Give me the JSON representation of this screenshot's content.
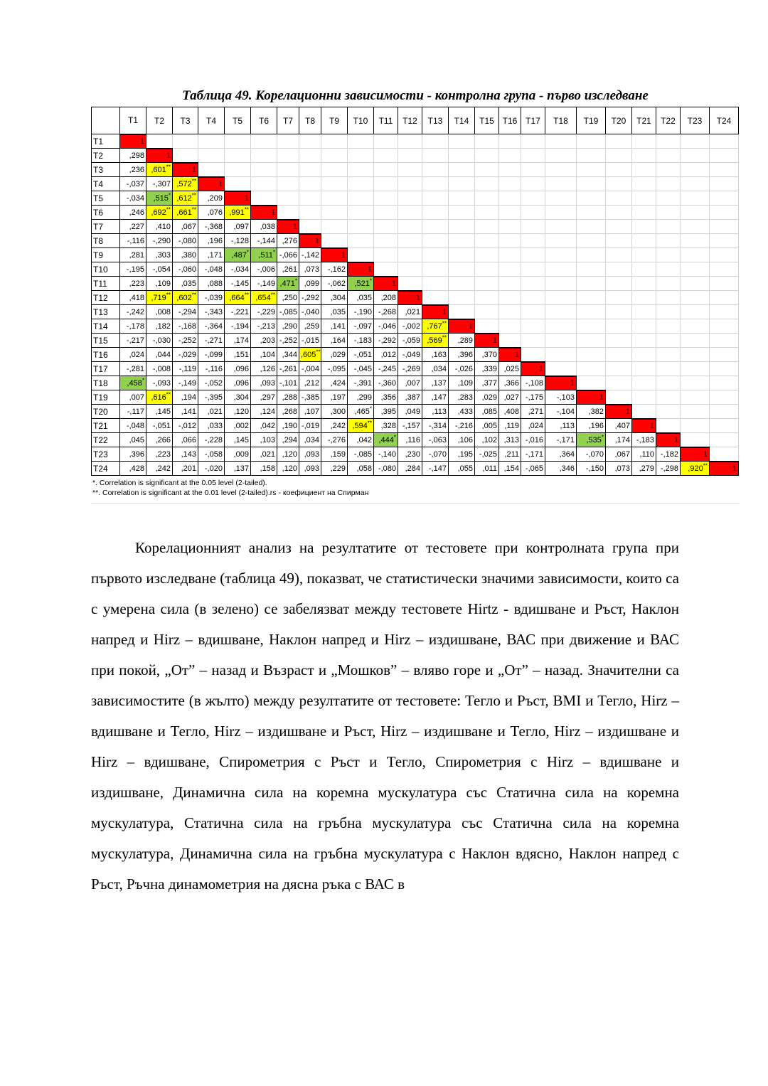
{
  "title": "Таблица 49. Корелационни зависимости - контролна група - първо изследване",
  "colors": {
    "diagonal": "#ff0000",
    "significant_01": "#ffff00",
    "significant_05": "#92d050"
  },
  "table": {
    "col_headers": [
      "T1",
      "T2",
      "T3",
      "T4",
      "T5",
      "T6",
      "T7",
      "T8",
      "T9",
      "T10",
      "T11",
      "T12",
      "T13",
      "T14",
      "T15",
      "T16",
      "T17",
      "T18",
      "T19",
      "T20",
      "T21",
      "T22",
      "T23",
      "T24"
    ],
    "rows": [
      {
        "label": "T1",
        "cells": [
          [
            "1",
            null,
            "r"
          ]
        ]
      },
      {
        "label": "T2",
        "cells": [
          [
            ",298"
          ],
          [
            "1",
            null,
            "r"
          ]
        ]
      },
      {
        "label": "T3",
        "cells": [
          [
            ",236"
          ],
          [
            ",601",
            "**",
            "y"
          ],
          [
            "1",
            null,
            "r"
          ]
        ]
      },
      {
        "label": "T4",
        "cells": [
          [
            "-,037"
          ],
          [
            "-,307"
          ],
          [
            ",572",
            "**",
            "y"
          ],
          [
            "1",
            null,
            "r"
          ]
        ]
      },
      {
        "label": "T5",
        "cells": [
          [
            "-,034"
          ],
          [
            ",515",
            "*",
            "g"
          ],
          [
            ",612",
            "**",
            "y"
          ],
          [
            ",209"
          ],
          [
            "1",
            null,
            "r"
          ]
        ]
      },
      {
        "label": "T6",
        "cells": [
          [
            ",246"
          ],
          [
            ",692",
            "**",
            "y"
          ],
          [
            ",661",
            "**",
            "y"
          ],
          [
            ",076"
          ],
          [
            ",991",
            "**",
            "y"
          ],
          [
            "1",
            null,
            "r"
          ]
        ]
      },
      {
        "label": "T7",
        "cells": [
          [
            ",227"
          ],
          [
            ",410"
          ],
          [
            ",067"
          ],
          [
            "-,368"
          ],
          [
            ",097"
          ],
          [
            ",038"
          ],
          [
            "1",
            null,
            "r"
          ]
        ]
      },
      {
        "label": "T8",
        "cells": [
          [
            "-,116"
          ],
          [
            "-,290"
          ],
          [
            "-,080"
          ],
          [
            ",196"
          ],
          [
            "-,128"
          ],
          [
            "-,144"
          ],
          [
            ",276"
          ],
          [
            "1",
            null,
            "r"
          ]
        ]
      },
      {
        "label": "T9",
        "cells": [
          [
            ",281"
          ],
          [
            ",303"
          ],
          [
            ",380"
          ],
          [
            ",171"
          ],
          [
            ",487",
            "*",
            "g"
          ],
          [
            ",511",
            "*",
            "g"
          ],
          [
            "-,066"
          ],
          [
            "-,142"
          ],
          [
            "1",
            null,
            "r"
          ]
        ]
      },
      {
        "label": "T10",
        "cells": [
          [
            "-,195"
          ],
          [
            "-,054"
          ],
          [
            "-,060"
          ],
          [
            "-,048"
          ],
          [
            "-,034"
          ],
          [
            "-,006"
          ],
          [
            ",261"
          ],
          [
            ",073"
          ],
          [
            "-,162"
          ],
          [
            "1",
            null,
            "r"
          ]
        ]
      },
      {
        "label": "T11",
        "cells": [
          [
            ",223"
          ],
          [
            ",109"
          ],
          [
            ",035"
          ],
          [
            ",088"
          ],
          [
            "-,145"
          ],
          [
            "-,149"
          ],
          [
            ",471",
            "*",
            "g"
          ],
          [
            ",099"
          ],
          [
            "-,062"
          ],
          [
            ",521",
            "*",
            "g"
          ],
          [
            "1",
            null,
            "r"
          ]
        ]
      },
      {
        "label": "T12",
        "cells": [
          [
            ",418"
          ],
          [
            ",719",
            "**",
            "y"
          ],
          [
            ",602",
            "**",
            "y"
          ],
          [
            "-,039"
          ],
          [
            ",664",
            "**",
            "y"
          ],
          [
            ",654",
            "**",
            "y"
          ],
          [
            ",250"
          ],
          [
            "-,292"
          ],
          [
            ",304"
          ],
          [
            ",035"
          ],
          [
            ",208"
          ],
          [
            "1",
            null,
            "r"
          ]
        ]
      },
      {
        "label": "T13",
        "cells": [
          [
            "-,242"
          ],
          [
            ",008"
          ],
          [
            "-,294"
          ],
          [
            "-,343"
          ],
          [
            "-,221"
          ],
          [
            "-,229"
          ],
          [
            "-,085"
          ],
          [
            "-,040"
          ],
          [
            ",035"
          ],
          [
            "-,190"
          ],
          [
            "-,268"
          ],
          [
            ",021"
          ],
          [
            "1",
            null,
            "r"
          ]
        ]
      },
      {
        "label": "T14",
        "cells": [
          [
            "-,178"
          ],
          [
            ",182"
          ],
          [
            "-,168"
          ],
          [
            "-,364"
          ],
          [
            "-,194"
          ],
          [
            "-,213"
          ],
          [
            ",290"
          ],
          [
            ",259"
          ],
          [
            ",141"
          ],
          [
            "-,097"
          ],
          [
            "-,046"
          ],
          [
            "-,002"
          ],
          [
            ",767",
            "**",
            "y"
          ],
          [
            "1",
            null,
            "r"
          ]
        ]
      },
      {
        "label": "T15",
        "cells": [
          [
            "-,217"
          ],
          [
            "-,030"
          ],
          [
            "-,252"
          ],
          [
            "-,271"
          ],
          [
            ",174"
          ],
          [
            ",203"
          ],
          [
            "-,252"
          ],
          [
            "-,015"
          ],
          [
            ",164"
          ],
          [
            "-,183"
          ],
          [
            "-,292"
          ],
          [
            "-,059"
          ],
          [
            ",569",
            "**",
            "y"
          ],
          [
            ",289"
          ],
          [
            "1",
            null,
            "r"
          ]
        ]
      },
      {
        "label": "T16",
        "cells": [
          [
            ",024"
          ],
          [
            ",044"
          ],
          [
            "-,029"
          ],
          [
            "-,099"
          ],
          [
            ",151"
          ],
          [
            ",104"
          ],
          [
            ",344"
          ],
          [
            ",605",
            "**",
            "y"
          ],
          [
            ",029"
          ],
          [
            "-,051"
          ],
          [
            ",012"
          ],
          [
            "-,049"
          ],
          [
            ",163"
          ],
          [
            ",396"
          ],
          [
            ",370"
          ],
          [
            "1",
            null,
            "r"
          ]
        ]
      },
      {
        "label": "T17",
        "cells": [
          [
            "-,281"
          ],
          [
            "-,008"
          ],
          [
            "-,119"
          ],
          [
            "-,116"
          ],
          [
            ",096"
          ],
          [
            ",126"
          ],
          [
            "-,261"
          ],
          [
            "-,004"
          ],
          [
            "-,095"
          ],
          [
            "-,045"
          ],
          [
            "-,245"
          ],
          [
            "-,269"
          ],
          [
            ",034"
          ],
          [
            "-,026"
          ],
          [
            ",339"
          ],
          [
            ",025"
          ],
          [
            "1",
            null,
            "r"
          ]
        ]
      },
      {
        "label": "T18",
        "cells": [
          [
            ",458",
            "*",
            "g"
          ],
          [
            "-,093"
          ],
          [
            "-,149"
          ],
          [
            "-,052"
          ],
          [
            ",096"
          ],
          [
            ",093"
          ],
          [
            "-,101"
          ],
          [
            ",212"
          ],
          [
            ",424"
          ],
          [
            "-,391"
          ],
          [
            "-,360"
          ],
          [
            ",007"
          ],
          [
            ",137"
          ],
          [
            ",109"
          ],
          [
            ",377"
          ],
          [
            ",366"
          ],
          [
            "-,108"
          ],
          [
            "1",
            null,
            "r"
          ]
        ]
      },
      {
        "label": "T19",
        "cells": [
          [
            ",007"
          ],
          [
            ",616",
            "**",
            "y"
          ],
          [
            ",194"
          ],
          [
            "-,395"
          ],
          [
            ",304"
          ],
          [
            ",297"
          ],
          [
            ",288"
          ],
          [
            "-,385"
          ],
          [
            ",197"
          ],
          [
            ",299"
          ],
          [
            ",356"
          ],
          [
            ",387"
          ],
          [
            ",147"
          ],
          [
            ",283"
          ],
          [
            ",029"
          ],
          [
            ",027"
          ],
          [
            "-,175"
          ],
          [
            "-,103"
          ],
          [
            "1",
            null,
            "r"
          ]
        ]
      },
      {
        "label": "T20",
        "cells": [
          [
            "-,117"
          ],
          [
            ",145"
          ],
          [
            ",141"
          ],
          [
            ",021"
          ],
          [
            ",120"
          ],
          [
            ",124"
          ],
          [
            ",268"
          ],
          [
            ",107"
          ],
          [
            ",300"
          ],
          [
            ",465",
            "*"
          ],
          [
            ",395"
          ],
          [
            ",049"
          ],
          [
            ",113"
          ],
          [
            ",433"
          ],
          [
            ",085"
          ],
          [
            ",408"
          ],
          [
            ",271"
          ],
          [
            "-,104"
          ],
          [
            ",382"
          ],
          [
            "1",
            null,
            "r"
          ]
        ]
      },
      {
        "label": "T21",
        "cells": [
          [
            "-,048"
          ],
          [
            "-,051"
          ],
          [
            "-,012"
          ],
          [
            ",033"
          ],
          [
            ",002"
          ],
          [
            ",042"
          ],
          [
            ",190"
          ],
          [
            "-,019"
          ],
          [
            ",242"
          ],
          [
            ",594",
            "**",
            "y"
          ],
          [
            ",328"
          ],
          [
            "-,157"
          ],
          [
            "-,314"
          ],
          [
            "-,216"
          ],
          [
            ",005"
          ],
          [
            ",119"
          ],
          [
            ",024"
          ],
          [
            ",113"
          ],
          [
            ",196"
          ],
          [
            ",407"
          ],
          [
            "1",
            null,
            "r"
          ]
        ]
      },
      {
        "label": "T22",
        "cells": [
          [
            ",045"
          ],
          [
            ",266"
          ],
          [
            ",066"
          ],
          [
            "-,228"
          ],
          [
            ",145"
          ],
          [
            ",103"
          ],
          [
            ",294"
          ],
          [
            ",034"
          ],
          [
            "-,276"
          ],
          [
            ",042"
          ],
          [
            ",444",
            "*",
            "g"
          ],
          [
            ",116"
          ],
          [
            "-,063"
          ],
          [
            ",106"
          ],
          [
            ",102"
          ],
          [
            ",313"
          ],
          [
            "-,016"
          ],
          [
            "-,171"
          ],
          [
            ",535",
            "*",
            "g"
          ],
          [
            ",174"
          ],
          [
            "-,183"
          ],
          [
            "1",
            null,
            "r"
          ]
        ]
      },
      {
        "label": "T23",
        "cells": [
          [
            ",396"
          ],
          [
            ",223"
          ],
          [
            ",143"
          ],
          [
            "-,058"
          ],
          [
            ",009"
          ],
          [
            ",021"
          ],
          [
            ",120"
          ],
          [
            ",093"
          ],
          [
            ",159"
          ],
          [
            "-,085"
          ],
          [
            "-,140"
          ],
          [
            ",230"
          ],
          [
            "-,070"
          ],
          [
            ",195"
          ],
          [
            "-,025"
          ],
          [
            ",211"
          ],
          [
            "-,171"
          ],
          [
            ",364"
          ],
          [
            "-,070"
          ],
          [
            ",067"
          ],
          [
            ",110"
          ],
          [
            "-,182"
          ],
          [
            "1",
            null,
            "r"
          ]
        ]
      },
      {
        "label": "T24",
        "cells": [
          [
            ",428"
          ],
          [
            ",242"
          ],
          [
            ",201"
          ],
          [
            "-,020"
          ],
          [
            ",137"
          ],
          [
            ",158"
          ],
          [
            ",120"
          ],
          [
            ",093"
          ],
          [
            ",229"
          ],
          [
            ",058"
          ],
          [
            "-,080"
          ],
          [
            ",284"
          ],
          [
            "-,147"
          ],
          [
            ",055"
          ],
          [
            ",011"
          ],
          [
            ",154"
          ],
          [
            "-,065"
          ],
          [
            ",346"
          ],
          [
            "-,150"
          ],
          [
            ",073"
          ],
          [
            ",279"
          ],
          [
            "-,298"
          ],
          [
            ",920",
            "**",
            "y"
          ],
          [
            "1",
            null,
            "r"
          ]
        ]
      }
    ],
    "footnotes": [
      "*. Correlation is significant at the 0.05 level (2-tailed).",
      "**. Correlation is significant at the 0.01 level (2-tailed).rs - коефициент на Спирман"
    ]
  },
  "paragraph": "Корелационният анализ на резултатите от тестовете при контролната група при първото изследване (таблица 49), показват, че статистически значими зависимости, които са с умерена сила (в зелено) се забелязват между тестовете Hirtz - вдишване и Ръст, Наклон напред и Hirz – вдишване, Наклон напред и Hirz – издишване, ВАС при движение и ВАС при покой, „От” – назад и Възраст и „Мошков” – вляво горе и „От” – назад. Значителни са зависимостите (в жълто) между резултатите от тестовете: Тегло и Ръст, BMI и Тегло, Hirz – вдишване и Тегло, Hirz – издишване и Ръст, Hirz – издишване и Тегло, Hirz – издишване и Hirz – вдишване, Спирометрия с Ръст и Тегло, Спирометрия с Hirz – вдишване и издишване, Динамична сила на коремна мускулатура със Статична сила на коремна мускулатура, Статична сила на гръбна мускулатура със Статична сила на коремна мускулатура, Динамична сила на гръбна мускулатура с Наклон вдясно, Наклон напред с Ръст, Ръчна динамометрия на дясна ръка с ВАС в"
}
